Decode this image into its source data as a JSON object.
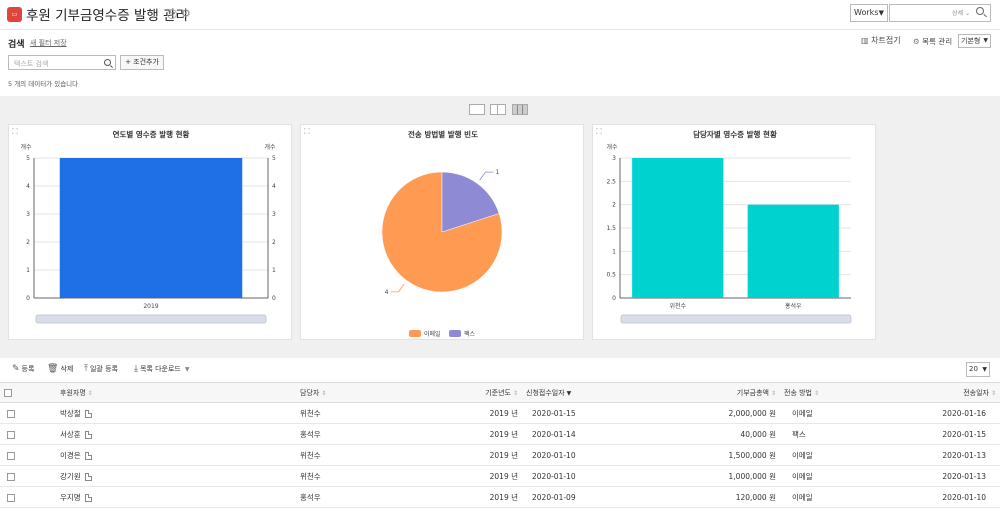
{
  "header": {
    "title": "후원 기부금영수증 발행 관리",
    "app_icon": "receipt-icon",
    "works_select": "Works",
    "search_detail": "상세 ⌄"
  },
  "filter": {
    "title": "검색",
    "new_filter": "새 필터 저장",
    "text_search_placeholder": "텍스트 검색",
    "add_condition": "조건추가",
    "count_text": "5 개의 데이터가 있습니다"
  },
  "top_actions": {
    "chart_collapse": "차트접기",
    "list_manage": "목록 관리",
    "view_select": "기본형"
  },
  "colors": {
    "bar_blue": "#1f6fe6",
    "bar_teal": "#00d2d0",
    "pie_orange": "#ff9a52",
    "pie_purple": "#8e8bd4"
  },
  "chart_data": [
    {
      "type": "bar",
      "title": "연도별 영수증 발행 현황",
      "ylabel": "개수",
      "y2label": "개수",
      "categories": [
        "2019"
      ],
      "values": [
        5
      ],
      "ylim": [
        0,
        5
      ],
      "yticks": [
        "0",
        "1",
        "2",
        "3",
        "4",
        "5"
      ],
      "grid": true
    },
    {
      "type": "pie",
      "title": "전송 방법별 발행 빈도",
      "categories": [
        "이메일",
        "팩스"
      ],
      "values": [
        4,
        1
      ],
      "labels": [
        "4",
        "1"
      ],
      "legend": "bottom"
    },
    {
      "type": "bar",
      "title": "담당자별 영수증 발행 현황",
      "ylabel": "개수",
      "categories": [
        "위천수",
        "홍석우"
      ],
      "values": [
        3,
        2
      ],
      "ylim": [
        0,
        3
      ],
      "yticks": [
        "0",
        "0.5",
        "1",
        "1.5",
        "2",
        "2.5",
        "3"
      ],
      "grid": true
    }
  ],
  "toolbar": {
    "register": "등록",
    "delete": "삭제",
    "bulk_register": "일괄 등록",
    "bulk_download": "목록 다운로드",
    "page_size": "20"
  },
  "table": {
    "columns": [
      "후원자명",
      "담당자",
      "기준년도",
      "신청접수일자",
      "기부금총액",
      "전송 방법",
      "전송일자"
    ],
    "rows": [
      [
        "박상철",
        "위천수",
        "2019 년",
        "2020-01-15",
        "2,000,000 원",
        "이메일",
        "2020-01-16"
      ],
      [
        "서상훈",
        "홍석우",
        "2019 년",
        "2020-01-14",
        "40,000 원",
        "팩스",
        "2020-01-15"
      ],
      [
        "이경은",
        "위천수",
        "2019 년",
        "2020-01-10",
        "1,500,000 원",
        "이메일",
        "2020-01-13"
      ],
      [
        "강기원",
        "위천수",
        "2019 년",
        "2020-01-10",
        "1,000,000 원",
        "이메일",
        "2020-01-13"
      ],
      [
        "우지명",
        "홍석우",
        "2019 년",
        "2020-01-09",
        "120,000 원",
        "이메일",
        "2020-01-10"
      ]
    ]
  }
}
